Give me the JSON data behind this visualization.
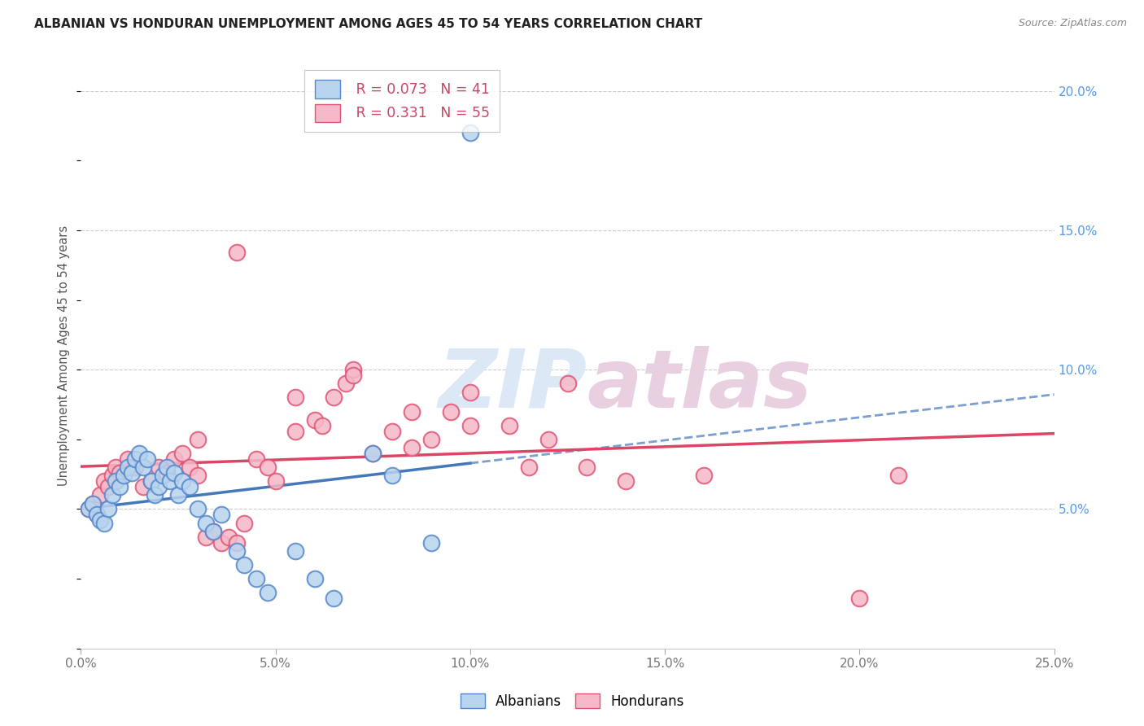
{
  "title": "ALBANIAN VS HONDURAN UNEMPLOYMENT AMONG AGES 45 TO 54 YEARS CORRELATION CHART",
  "source": "Source: ZipAtlas.com",
  "ylabel": "Unemployment Among Ages 45 to 54 years",
  "xlim": [
    0.0,
    0.25
  ],
  "ylim": [
    0.0,
    0.21
  ],
  "xticks": [
    0.0,
    0.05,
    0.1,
    0.15,
    0.2,
    0.25
  ],
  "xtick_labels": [
    "0.0%",
    "5.0%",
    "10.0%",
    "15.0%",
    "20.0%",
    "25.0%"
  ],
  "ytick_vals_right": [
    0.05,
    0.1,
    0.15,
    0.2
  ],
  "ytick_labels_right": [
    "5.0%",
    "10.0%",
    "15.0%",
    "20.0%"
  ],
  "albanian_color": "#b8d4ee",
  "honduran_color": "#f5b8c8",
  "albanian_edge": "#5588cc",
  "honduran_edge": "#e05575",
  "albanian_line_color": "#4477bb",
  "honduran_line_color": "#dd4466",
  "legend_R_albanian": "0.073",
  "legend_N_albanian": "41",
  "legend_R_honduran": "0.331",
  "legend_N_honduran": "55",
  "albanian_x": [
    0.002,
    0.003,
    0.004,
    0.005,
    0.006,
    0.007,
    0.008,
    0.009,
    0.01,
    0.011,
    0.012,
    0.013,
    0.014,
    0.015,
    0.016,
    0.017,
    0.018,
    0.019,
    0.02,
    0.021,
    0.022,
    0.023,
    0.024,
    0.025,
    0.026,
    0.028,
    0.03,
    0.032,
    0.034,
    0.036,
    0.04,
    0.042,
    0.045,
    0.048,
    0.055,
    0.06,
    0.065,
    0.08,
    0.09,
    0.1,
    0.075
  ],
  "albanian_y": [
    0.05,
    0.052,
    0.048,
    0.046,
    0.045,
    0.05,
    0.055,
    0.06,
    0.058,
    0.062,
    0.065,
    0.063,
    0.068,
    0.07,
    0.065,
    0.068,
    0.06,
    0.055,
    0.058,
    0.062,
    0.065,
    0.06,
    0.063,
    0.055,
    0.06,
    0.058,
    0.05,
    0.045,
    0.042,
    0.048,
    0.035,
    0.03,
    0.025,
    0.02,
    0.035,
    0.025,
    0.018,
    0.062,
    0.038,
    0.185,
    0.07
  ],
  "honduran_x": [
    0.002,
    0.003,
    0.004,
    0.005,
    0.006,
    0.007,
    0.008,
    0.009,
    0.01,
    0.012,
    0.014,
    0.016,
    0.018,
    0.02,
    0.022,
    0.024,
    0.026,
    0.028,
    0.03,
    0.032,
    0.034,
    0.036,
    0.038,
    0.04,
    0.042,
    0.045,
    0.048,
    0.05,
    0.055,
    0.06,
    0.062,
    0.065,
    0.068,
    0.07,
    0.075,
    0.08,
    0.085,
    0.09,
    0.095,
    0.1,
    0.11,
    0.12,
    0.13,
    0.14,
    0.16,
    0.2,
    0.04,
    0.055,
    0.07,
    0.085,
    0.1,
    0.115,
    0.125,
    0.21,
    0.03
  ],
  "honduran_y": [
    0.05,
    0.052,
    0.048,
    0.055,
    0.06,
    0.058,
    0.062,
    0.065,
    0.063,
    0.068,
    0.065,
    0.058,
    0.06,
    0.065,
    0.063,
    0.068,
    0.07,
    0.065,
    0.062,
    0.04,
    0.042,
    0.038,
    0.04,
    0.038,
    0.045,
    0.068,
    0.065,
    0.06,
    0.078,
    0.082,
    0.08,
    0.09,
    0.095,
    0.1,
    0.07,
    0.078,
    0.072,
    0.075,
    0.085,
    0.08,
    0.08,
    0.075,
    0.065,
    0.06,
    0.062,
    0.018,
    0.142,
    0.09,
    0.098,
    0.085,
    0.092,
    0.065,
    0.095,
    0.062,
    0.075
  ],
  "background_color": "#ffffff",
  "grid_color": "#cccccc",
  "watermark_color": "#dce8f5",
  "watermark_fontsize": 72
}
